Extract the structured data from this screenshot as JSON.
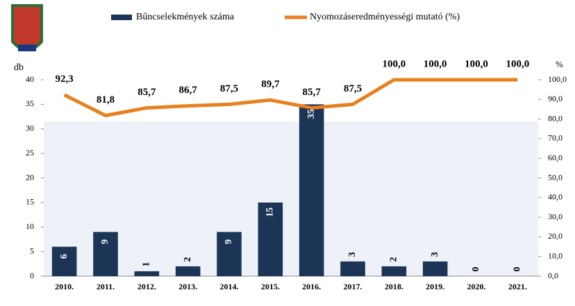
{
  "chart_data": {
    "type": "combo",
    "categories": [
      "2010.",
      "2011.",
      "2012.",
      "2013.",
      "2014.",
      "2015.",
      "2016.",
      "2017.",
      "2018.",
      "2019.",
      "2020.",
      "2021."
    ],
    "ylabel": "db",
    "y2label": "%",
    "ylim": [
      0,
      40
    ],
    "yticks": [
      0,
      5,
      10,
      15,
      20,
      25,
      30,
      35,
      40
    ],
    "y2lim": [
      0,
      100
    ],
    "y2ticks": [
      {
        "value": 0,
        "label": "0,0"
      },
      {
        "value": 10,
        "label": "10,0"
      },
      {
        "value": 20,
        "label": "20,0"
      },
      {
        "value": 30,
        "label": "30,0"
      },
      {
        "value": 40,
        "label": "40,0"
      },
      {
        "value": 50,
        "label": "50,0"
      },
      {
        "value": 60,
        "label": "60,0"
      },
      {
        "value": 70,
        "label": "70,0"
      },
      {
        "value": 80,
        "label": "80,0"
      },
      {
        "value": 90,
        "label": "90,0"
      },
      {
        "value": 100,
        "label": "100,0"
      }
    ],
    "series": [
      {
        "name": "Bűncselekmények száma",
        "type": "bar",
        "color": "#1c3557",
        "values": [
          6,
          9,
          1,
          2,
          9,
          15,
          35,
          3,
          2,
          3,
          0,
          0
        ]
      },
      {
        "name": "Nyomozáseredményességi mutató (%)",
        "type": "line",
        "axis": "y2",
        "color": "#e8801e",
        "values": [
          92.3,
          81.8,
          85.7,
          86.7,
          87.5,
          89.7,
          85.7,
          87.5,
          100,
          100,
          100,
          100
        ],
        "value_labels": [
          "92,3",
          "81,8",
          "85,7",
          "86,7",
          "87,5",
          "89,7",
          "85,7",
          "87,5",
          "100,0",
          "100,0",
          "100,0",
          "100,0"
        ]
      }
    ]
  }
}
